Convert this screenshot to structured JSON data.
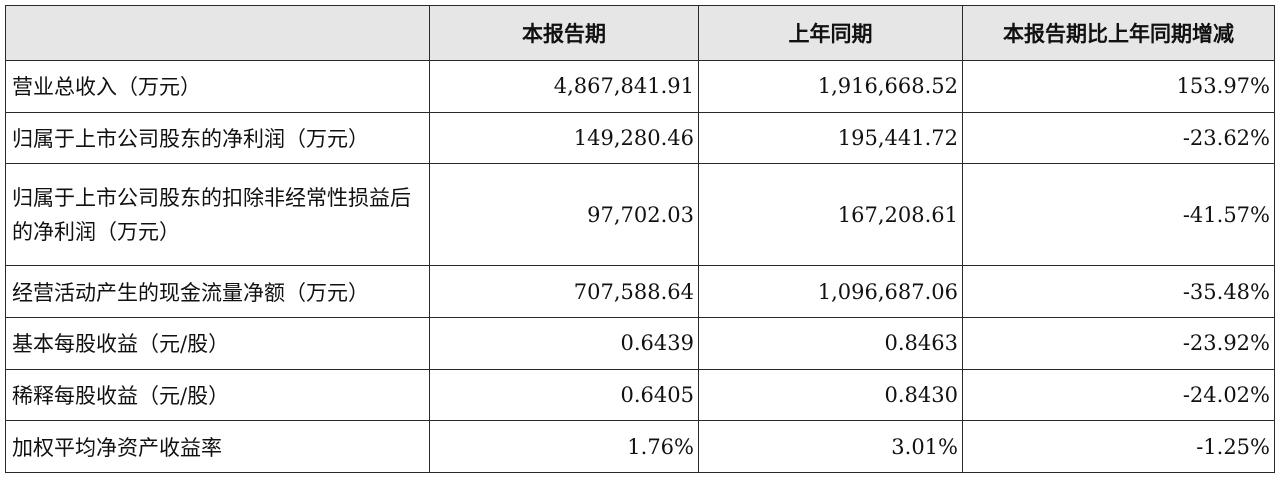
{
  "table": {
    "headers": [
      "",
      "本报告期",
      "上年同期",
      "本报告期比上年同期增减"
    ],
    "rows": [
      {
        "label": "营业总收入（万元）",
        "current": "4,867,841.91",
        "prior": "1,916,668.52",
        "change": "153.97%"
      },
      {
        "label": "归属于上市公司股东的净利润（万元）",
        "current": "149,280.46",
        "prior": "195,441.72",
        "change": "-23.62%"
      },
      {
        "label": "归属于上市公司股东的扣除非经常性损益后的净利润（万元）",
        "current": "97,702.03",
        "prior": "167,208.61",
        "change": "-41.57%"
      },
      {
        "label": "经营活动产生的现金流量净额（万元）",
        "current": "707,588.64",
        "prior": "1,096,687.06",
        "change": "-35.48%"
      },
      {
        "label": "基本每股收益（元/股）",
        "current": "0.6439",
        "prior": "0.8463",
        "change": "-23.92%"
      },
      {
        "label": "稀释每股收益（元/股）",
        "current": "0.6405",
        "prior": "0.8430",
        "change": "-24.02%"
      },
      {
        "label": "加权平均净资产收益率",
        "current": "1.76%",
        "prior": "3.01%",
        "change": "-1.25%"
      }
    ]
  }
}
